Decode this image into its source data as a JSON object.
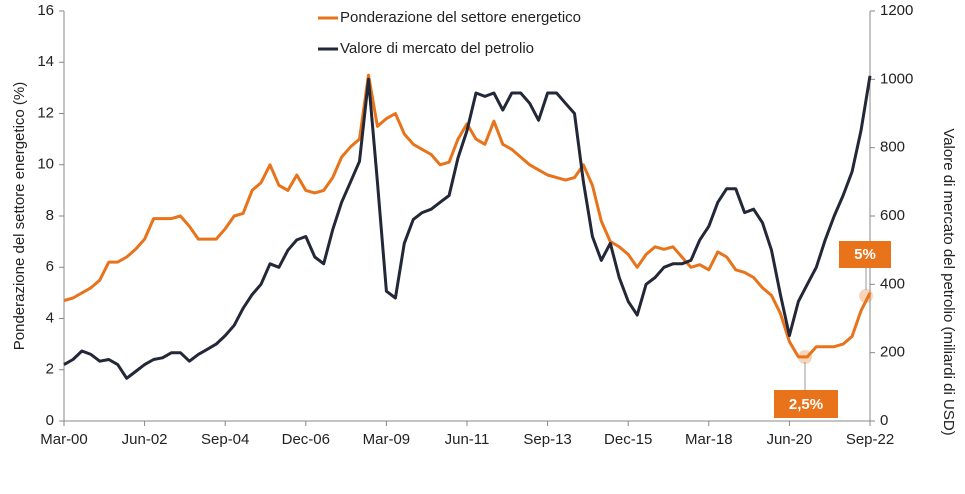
{
  "chart_data": {
    "type": "line",
    "categories": [
      "Mar-00",
      null,
      null,
      null,
      null,
      null,
      null,
      null,
      null,
      "Jun-02",
      null,
      null,
      null,
      null,
      null,
      null,
      null,
      null,
      "Sep-04",
      null,
      null,
      null,
      null,
      null,
      null,
      null,
      null,
      "Dec-06",
      null,
      null,
      null,
      null,
      null,
      null,
      null,
      null,
      "Mar-09",
      null,
      null,
      null,
      null,
      null,
      null,
      null,
      null,
      "Jun-11",
      null,
      null,
      null,
      null,
      null,
      null,
      null,
      null,
      "Sep-13",
      null,
      null,
      null,
      null,
      null,
      null,
      null,
      null,
      "Dec-15",
      null,
      null,
      null,
      null,
      null,
      null,
      null,
      null,
      "Mar-18",
      null,
      null,
      null,
      null,
      null,
      null,
      null,
      null,
      "Jun-20",
      null,
      null,
      null,
      null,
      null,
      null,
      null,
      null,
      "Sep-22"
    ],
    "series": [
      {
        "name": "Ponderazione del settore energetico",
        "color": "#e8731a",
        "axis": "y",
        "values": [
          4.7,
          4.8,
          5.0,
          5.2,
          5.5,
          6.2,
          6.2,
          6.4,
          6.7,
          7.1,
          7.9,
          7.9,
          7.9,
          8.0,
          7.6,
          7.1,
          7.1,
          7.1,
          7.5,
          8.0,
          8.1,
          9.0,
          9.3,
          10.0,
          9.2,
          9.0,
          9.6,
          9.0,
          8.9,
          9.0,
          9.5,
          10.3,
          10.7,
          11.0,
          13.5,
          11.5,
          11.8,
          12.0,
          11.2,
          10.8,
          10.6,
          10.4,
          10.0,
          10.1,
          11.0,
          11.6,
          11.0,
          10.8,
          11.7,
          10.8,
          10.6,
          10.3,
          10.0,
          9.8,
          9.6,
          9.5,
          9.4,
          9.5,
          10.0,
          9.2,
          7.8,
          7.0,
          6.8,
          6.5,
          6.0,
          6.5,
          6.8,
          6.7,
          6.8,
          6.4,
          6.0,
          6.1,
          5.9,
          6.6,
          6.4,
          5.9,
          5.8,
          5.6,
          5.2,
          4.9,
          4.2,
          3.1,
          2.5,
          2.5,
          2.9,
          2.9,
          2.9,
          3.0,
          3.3,
          4.3,
          5.0
        ]
      },
      {
        "name": "Valore di mercato del petrolio",
        "color": "#232838",
        "axis": "y2",
        "values": [
          165,
          180,
          205,
          195,
          175,
          180,
          165,
          125,
          145,
          165,
          180,
          185,
          200,
          200,
          175,
          195,
          210,
          225,
          250,
          280,
          330,
          370,
          400,
          460,
          450,
          500,
          530,
          540,
          480,
          460,
          560,
          640,
          700,
          760,
          1000,
          700,
          380,
          360,
          520,
          590,
          610,
          620,
          640,
          660,
          770,
          850,
          960,
          950,
          960,
          910,
          960,
          960,
          930,
          880,
          960,
          960,
          930,
          900,
          700,
          540,
          470,
          520,
          420,
          350,
          310,
          400,
          420,
          450,
          460,
          460,
          470,
          530,
          570,
          640,
          680,
          680,
          610,
          620,
          580,
          500,
          370,
          250,
          350,
          400,
          450,
          530,
          600,
          660,
          730,
          850,
          1010
        ]
      }
    ],
    "y_label": "Ponderazione del settore energetico (%)",
    "y2_label": "Valore di mercato del petrolio (miliardi di USD)",
    "ylim": [
      0,
      16
    ],
    "yticks": [
      0,
      2,
      4,
      6,
      8,
      10,
      12,
      14,
      16
    ],
    "y2lim": [
      0,
      1200
    ],
    "y2ticks": [
      0,
      200,
      400,
      600,
      800,
      1000,
      1200
    ],
    "annotations": [
      "2,5%",
      "5%"
    ],
    "legend": "top"
  }
}
